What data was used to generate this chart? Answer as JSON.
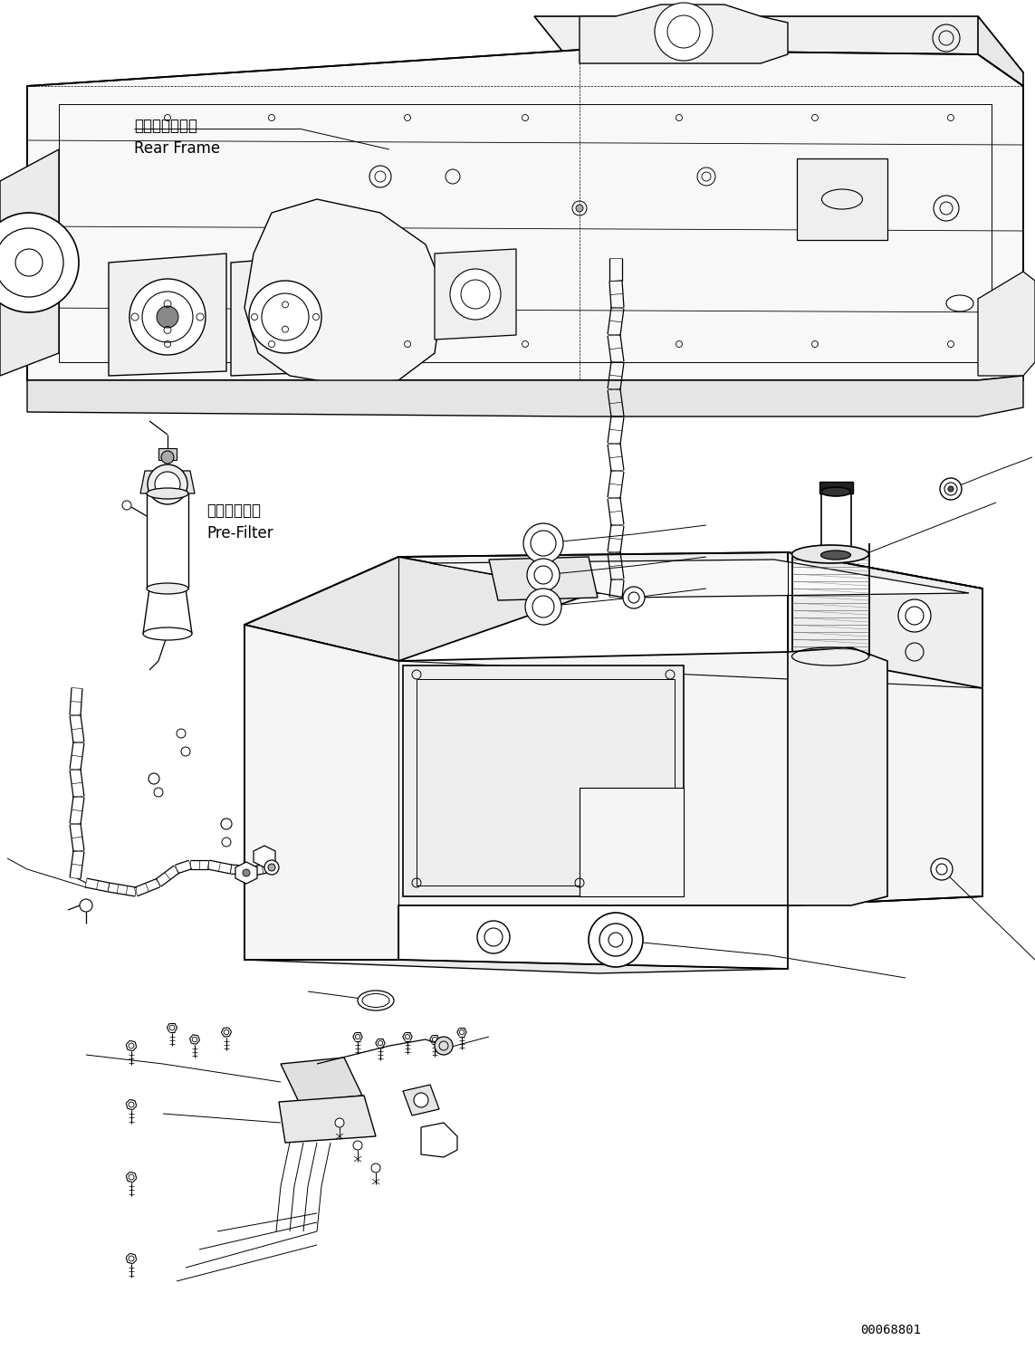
{
  "figsize": [
    11.43,
    14.91
  ],
  "dpi": 100,
  "bg_color": "#ffffff",
  "diagram_id": "00068801",
  "labels": {
    "rear_frame_jp": "リヤーフレーム",
    "rear_frame_en": "Rear Frame",
    "pre_filter_jp": "プリフィルタ",
    "pre_filter_en": "Pre-Filter"
  }
}
